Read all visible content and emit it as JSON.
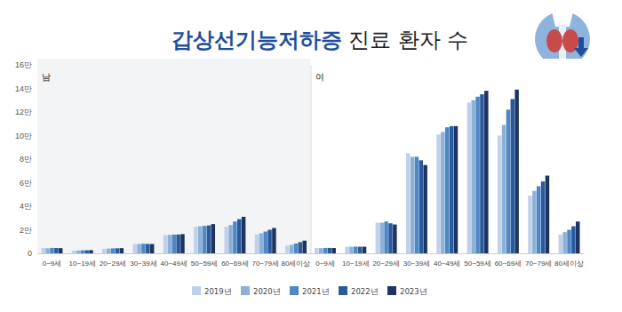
{
  "title": "갑상선기능저하증 진료 환자 수",
  "chart_data": [
    {
      "type": "bar",
      "title": "남",
      "categories": [
        "0~9세",
        "10~19세",
        "20~29세",
        "30~39세",
        "40~49세",
        "50~59세",
        "60~69세",
        "70~79세",
        "80세이상"
      ],
      "series": [
        {
          "name": "2019년",
          "color": "#bfd2ea",
          "values": [
            4500,
            2300,
            3900,
            7800,
            15500,
            22500,
            22500,
            16000,
            6500
          ]
        },
        {
          "name": "2020년",
          "color": "#8db0d8",
          "values": [
            4300,
            2400,
            4000,
            8000,
            15700,
            23000,
            24000,
            17000,
            7200
          ]
        },
        {
          "name": "2021년",
          "color": "#4e87c4",
          "values": [
            4600,
            2500,
            4200,
            8100,
            15900,
            23300,
            27000,
            18500,
            8300
          ]
        },
        {
          "name": "2022년",
          "color": "#2a5a9e",
          "values": [
            4500,
            2600,
            4300,
            8000,
            16000,
            23700,
            29000,
            20000,
            9500
          ]
        },
        {
          "name": "2023년",
          "color": "#1d3461",
          "values": [
            4400,
            2700,
            4400,
            7900,
            16300,
            24800,
            31000,
            21500,
            10800
          ]
        }
      ],
      "ylim": [
        0,
        160000
      ],
      "yticks": [
        0,
        {
          "value": 20000,
          "label": "2만"
        },
        {
          "value": 40000,
          "label": "4만"
        },
        {
          "value": 60000,
          "label": "6만"
        },
        {
          "value": 80000,
          "label": "8만"
        },
        {
          "value": 100000,
          "label": "10만"
        },
        {
          "value": 120000,
          "label": "12만"
        },
        {
          "value": 140000,
          "label": "14만"
        },
        {
          "value": 160000,
          "label": "16만"
        }
      ],
      "grid": false,
      "legend": "bottom"
    },
    {
      "type": "bar",
      "title": "여",
      "categories": [
        "0~9세",
        "10~19세",
        "20~29세",
        "30~39세",
        "40~49세",
        "50~59세",
        "60~69세",
        "70~79세",
        "80세이상"
      ],
      "series": [
        {
          "color": "#bfd2ea",
          "values": [
            4500,
            5500,
            26000,
            85000,
            101000,
            128000,
            100000,
            49000,
            16000
          ]
        },
        {
          "color": "#8db0d8",
          "values": [
            4400,
            5600,
            26000,
            82000,
            103000,
            130000,
            109000,
            53000,
            18000
          ]
        },
        {
          "color": "#4e87c4",
          "values": [
            4600,
            5700,
            27000,
            82000,
            107000,
            133000,
            122000,
            57000,
            20000
          ]
        },
        {
          "color": "#2a5a9e",
          "values": [
            4600,
            5600,
            25500,
            79000,
            108000,
            135000,
            131000,
            61000,
            23000
          ]
        },
        {
          "color": "#1d3461",
          "values": [
            4500,
            5600,
            24500,
            75000,
            108000,
            138000,
            139000,
            66000,
            27000
          ]
        }
      ],
      "ylim": [
        0,
        160000
      ],
      "yticks": [
        0,
        20000,
        40000,
        60000,
        80000,
        100000,
        120000,
        140000,
        160000
      ],
      "grid": false,
      "tick_labels": "x"
    }
  ]
}
